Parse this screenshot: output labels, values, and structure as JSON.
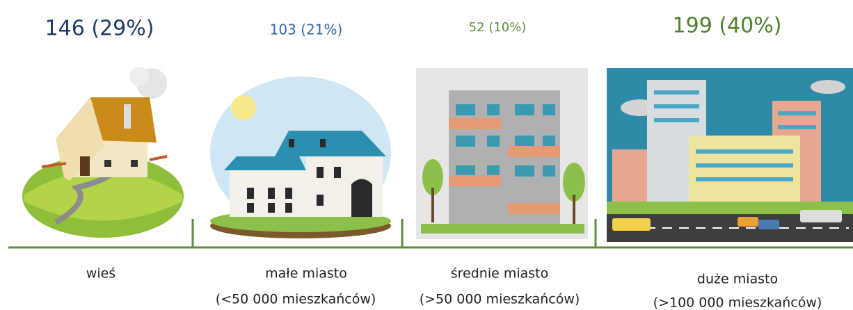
{
  "items": [
    {
      "value_label": "146 (29%)",
      "label": "wieś"
    },
    {
      "value_label": "103 (21%)",
      "label": "małe miasto",
      "sublabel": "(<50 000 mieszkańców)"
    },
    {
      "value_label": "52 (10%)",
      "label": "średnie miasto",
      "sublabel": "(>50 000 mieszkańców)"
    },
    {
      "value_label": "199 (40%)",
      "label": "duże miasto",
      "sublabel": "(>100 000 mieszkańców)"
    }
  ]
}
